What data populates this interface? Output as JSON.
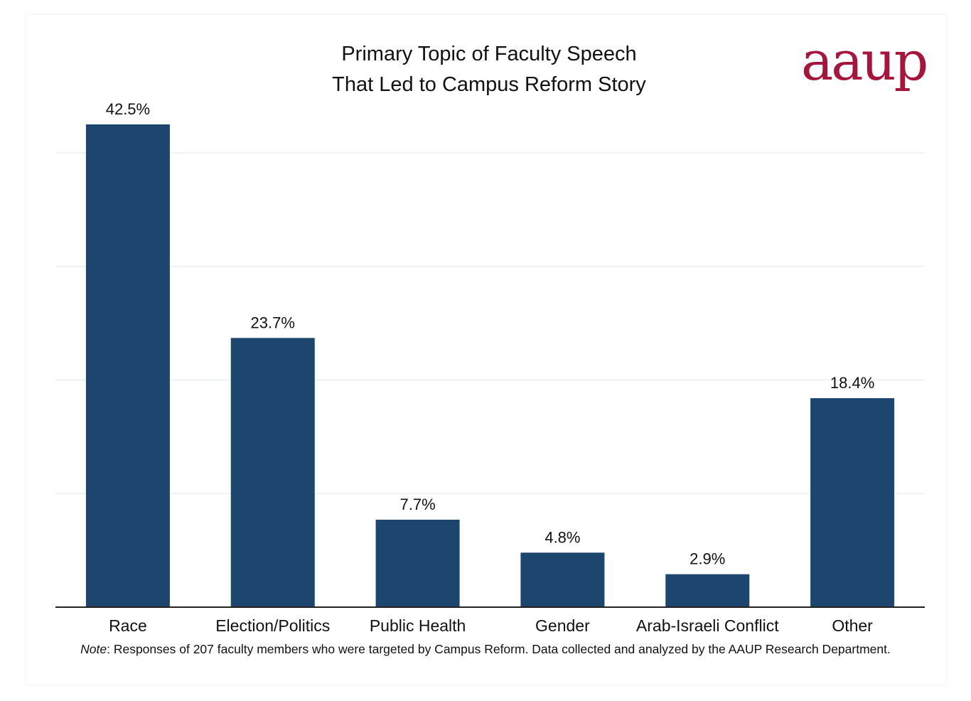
{
  "logo_text": "aaup",
  "note": {
    "prefix": "Note",
    "text": ": Responses of 207 faculty members who were targeted by Campus Reform. Data collected and analyzed by the AAUP Research Department."
  },
  "colors": {
    "bar": "#1c466e",
    "grid": "#eef2f2",
    "axis": "#222222",
    "logo": "#a6163c"
  },
  "chart_data": {
    "type": "bar",
    "title": [
      "Primary Topic of Faculty Speech",
      "That Led to Campus Reform Story"
    ],
    "xlabel": "",
    "ylabel": "",
    "categories": [
      "Race",
      "Election/Politics",
      "Public Health",
      "Gender",
      "Arab-Israeli Conflict",
      "Other"
    ],
    "values": [
      42.5,
      23.7,
      7.7,
      4.8,
      2.9,
      18.4
    ],
    "value_labels": [
      "42.5%",
      "23.7%",
      "7.7%",
      "4.8%",
      "2.9%",
      "18.4%"
    ],
    "ylim": [
      0,
      42.5
    ],
    "grid_values": [
      10,
      20,
      30,
      40
    ],
    "grid": true,
    "legend": "none"
  }
}
